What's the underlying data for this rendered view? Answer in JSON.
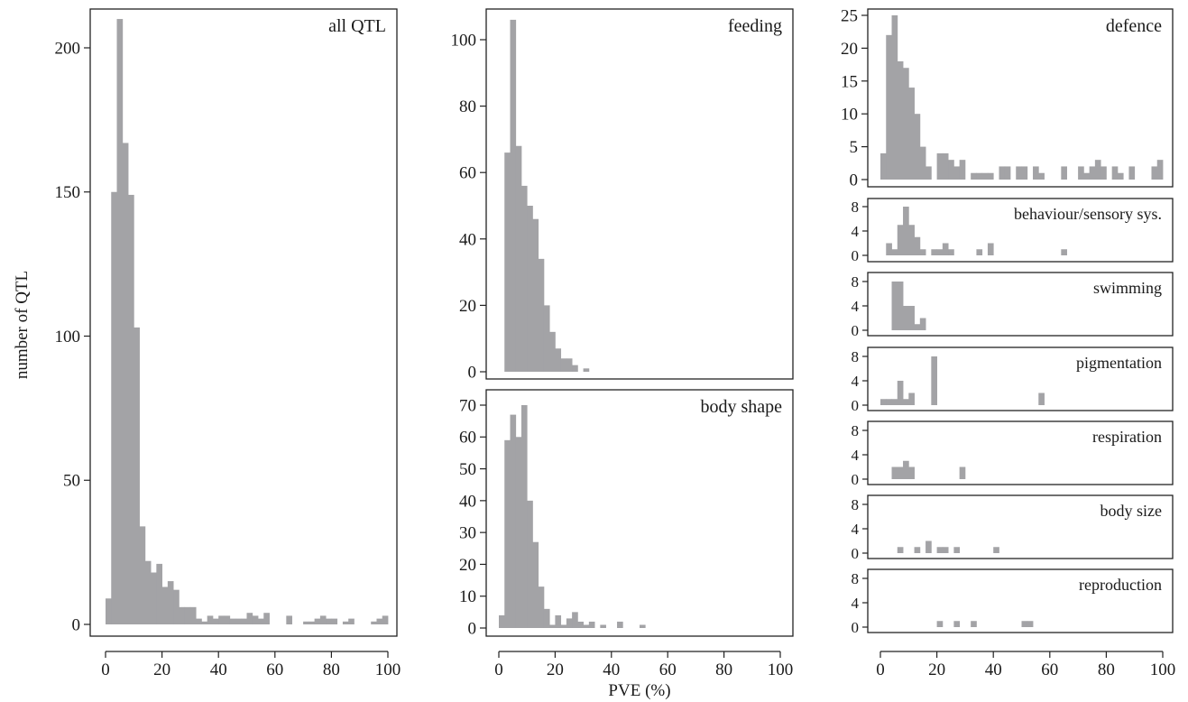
{
  "figure": {
    "ylabel": "number of QTL",
    "xlabel": "PVE (%)",
    "bar_color": "#a3a3a6"
  },
  "chart_data": [
    {
      "type": "bar",
      "label": "all QTL",
      "xlim": [
        0,
        100
      ],
      "ylim": [
        0,
        210
      ],
      "xticks": [
        0,
        20,
        40,
        60,
        80,
        100
      ],
      "yticks": [
        0,
        50,
        100,
        150,
        200
      ],
      "bin_width": 2,
      "bin_starts": [
        0,
        2,
        4,
        6,
        8,
        10,
        12,
        14,
        16,
        18,
        20,
        22,
        24,
        26,
        28,
        30,
        32,
        34,
        36,
        38,
        40,
        42,
        44,
        46,
        48,
        50,
        52,
        54,
        56,
        64,
        70,
        72,
        74,
        76,
        78,
        80,
        84,
        86,
        94,
        96,
        98
      ],
      "values": [
        9,
        150,
        210,
        167,
        149,
        103,
        34,
        22,
        18,
        21,
        13,
        15,
        12,
        6,
        6,
        6,
        2,
        1,
        3,
        2,
        3,
        3,
        2,
        2,
        2,
        4,
        3,
        2,
        4,
        3,
        1,
        1,
        2,
        3,
        2,
        2,
        1,
        2,
        1,
        2,
        3
      ]
    },
    {
      "type": "bar",
      "label": "feeding",
      "xlim": [
        0,
        100
      ],
      "ylim": [
        0,
        108
      ],
      "xticks": [
        0,
        20,
        40,
        60,
        80,
        100
      ],
      "yticks": [
        0,
        20,
        40,
        60,
        80,
        100
      ],
      "bin_width": 2,
      "bin_starts": [
        2,
        4,
        6,
        8,
        10,
        12,
        14,
        16,
        18,
        20,
        22,
        24,
        26,
        30
      ],
      "values": [
        66,
        106,
        68,
        56,
        50,
        46,
        34,
        20,
        12,
        7,
        4,
        4,
        2,
        1
      ]
    },
    {
      "type": "bar",
      "label": "body shape",
      "xlim": [
        0,
        100
      ],
      "ylim": [
        0,
        72
      ],
      "xticks": [
        0,
        20,
        40,
        60,
        80,
        100
      ],
      "yticks": [
        0,
        10,
        20,
        30,
        40,
        50,
        60,
        70
      ],
      "bin_width": 2,
      "bin_starts": [
        0,
        2,
        4,
        6,
        8,
        10,
        12,
        14,
        16,
        18,
        20,
        22,
        24,
        26,
        28,
        30,
        32,
        36,
        42,
        50
      ],
      "values": [
        4,
        59,
        67,
        60,
        70,
        40,
        27,
        13,
        6,
        1,
        4,
        1,
        3,
        5,
        2,
        1,
        2,
        1,
        2,
        1
      ]
    },
    {
      "type": "bar",
      "label": "defence",
      "xlim": [
        0,
        100
      ],
      "ylim": [
        0,
        25
      ],
      "xticks": [
        0,
        20,
        40,
        60,
        80,
        100
      ],
      "yticks": [
        0,
        5,
        10,
        15,
        20,
        25
      ],
      "bin_width": 2,
      "bin_starts": [
        0,
        2,
        4,
        6,
        8,
        10,
        12,
        14,
        16,
        20,
        22,
        24,
        26,
        28,
        32,
        34,
        36,
        38,
        42,
        44,
        48,
        50,
        54,
        56,
        64,
        70,
        72,
        74,
        76,
        78,
        82,
        84,
        88,
        96,
        98
      ],
      "values": [
        4,
        22,
        25,
        18,
        17,
        14,
        10,
        5,
        2,
        4,
        4,
        3,
        2,
        3,
        1,
        1,
        1,
        1,
        2,
        2,
        2,
        2,
        2,
        1,
        2,
        2,
        1,
        2,
        3,
        2,
        2,
        1,
        2,
        2,
        3
      ]
    },
    {
      "type": "bar",
      "label": "behaviour/sensory sys.",
      "xlim": [
        0,
        100
      ],
      "ylim": [
        0,
        9
      ],
      "xticks": [
        0,
        20,
        40,
        60,
        80,
        100
      ],
      "yticks": [
        0,
        4,
        8
      ],
      "bin_width": 2,
      "bin_starts": [
        2,
        4,
        6,
        8,
        10,
        12,
        14,
        18,
        20,
        22,
        24,
        34,
        38,
        64
      ],
      "values": [
        2,
        1,
        5,
        8,
        5,
        3,
        1,
        1,
        1,
        2,
        1,
        1,
        2,
        1
      ]
    },
    {
      "type": "bar",
      "label": "swimming",
      "xlim": [
        0,
        100
      ],
      "ylim": [
        0,
        9
      ],
      "xticks": [
        0,
        20,
        40,
        60,
        80,
        100
      ],
      "yticks": [
        0,
        4,
        8
      ],
      "bin_width": 2,
      "bin_starts": [
        4,
        6,
        8,
        10,
        12,
        14
      ],
      "values": [
        8,
        8,
        4,
        4,
        1,
        2
      ]
    },
    {
      "type": "bar",
      "label": "pigmentation",
      "xlim": [
        0,
        100
      ],
      "ylim": [
        0,
        9
      ],
      "xticks": [
        0,
        20,
        40,
        60,
        80,
        100
      ],
      "yticks": [
        0,
        4,
        8
      ],
      "bin_width": 2,
      "bin_starts": [
        0,
        2,
        4,
        6,
        8,
        10,
        18,
        56
      ],
      "values": [
        1,
        1,
        1,
        4,
        1,
        2,
        8,
        2
      ]
    },
    {
      "type": "bar",
      "label": "respiration",
      "xlim": [
        0,
        100
      ],
      "ylim": [
        0,
        9
      ],
      "xticks": [
        0,
        20,
        40,
        60,
        80,
        100
      ],
      "yticks": [
        0,
        4,
        8
      ],
      "bin_width": 2,
      "bin_starts": [
        4,
        6,
        8,
        10,
        28
      ],
      "values": [
        2,
        2,
        3,
        2,
        2
      ]
    },
    {
      "type": "bar",
      "label": "body size",
      "xlim": [
        0,
        100
      ],
      "ylim": [
        0,
        9
      ],
      "xticks": [
        0,
        20,
        40,
        60,
        80,
        100
      ],
      "yticks": [
        0,
        4,
        8
      ],
      "bin_width": 2,
      "bin_starts": [
        6,
        12,
        16,
        20,
        22,
        26,
        40
      ],
      "values": [
        1,
        1,
        2,
        1,
        1,
        1,
        1
      ]
    },
    {
      "type": "bar",
      "label": "reproduction",
      "xlim": [
        0,
        100
      ],
      "ylim": [
        0,
        9
      ],
      "xticks": [
        0,
        20,
        40,
        60,
        80,
        100
      ],
      "yticks": [
        0,
        4,
        8
      ],
      "bin_width": 2,
      "bin_starts": [
        20,
        26,
        32,
        50,
        52
      ],
      "values": [
        1,
        1,
        1,
        1,
        1
      ]
    }
  ]
}
